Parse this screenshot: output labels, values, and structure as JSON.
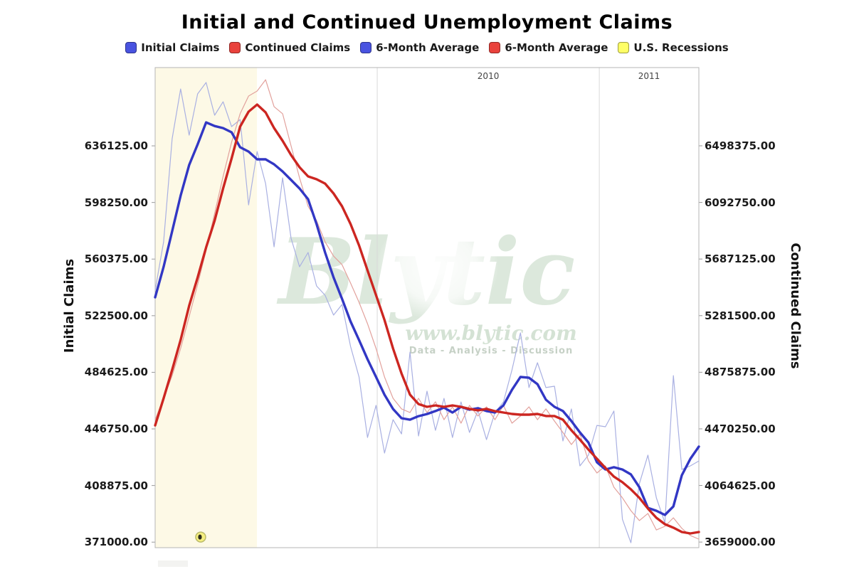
{
  "title": "Initial and Continued Unemployment Claims",
  "legend": {
    "items": [
      {
        "label": "Initial Claims",
        "color": "#4953e0"
      },
      {
        "label": "Continued Claims",
        "color": "#e9423c"
      },
      {
        "label": "6-Month Average",
        "color": "#4953e0"
      },
      {
        "label": "6-Month Average",
        "color": "#e9423c"
      },
      {
        "label": "U.S. Recessions",
        "color": "#ffff66"
      }
    ]
  },
  "watermark": {
    "brand": "Blytic",
    "url": "www.blytic.com",
    "tagline": "Data - Analysis - Discussion"
  },
  "chart_data": {
    "type": "line",
    "title": "Initial and Continued Unemployment Claims",
    "x": {
      "unit": "months_since_2009_01",
      "range": [
        0,
        29.38
      ],
      "gridline_months": [
        12,
        24
      ],
      "year_labels": [
        {
          "label": "2010",
          "from": 12,
          "to": 24
        },
        {
          "label": "2011",
          "from": 24,
          "to": 29.38
        }
      ]
    },
    "axes": {
      "left": {
        "label": "Initial Claims",
        "ticks": [
          636125,
          598250,
          560375,
          522500,
          484625,
          446750,
          408875,
          371000
        ],
        "range": [
          367300,
          688500
        ],
        "tick_decimals": 2
      },
      "right": {
        "label": "Continued Claims",
        "ticks": [
          6498375,
          6092750,
          5687125,
          5281500,
          4875875,
          4470250,
          4064625,
          3659000
        ],
        "range": [
          3618900,
          7059000
        ],
        "tick_decimals": 2
      }
    },
    "recession_bands": [
      {
        "from": 0,
        "to": 5.5
      }
    ],
    "recession_marker": {
      "month": 2.46,
      "value": 374400
    },
    "colors": {
      "recession_fill": "#fdf9e6",
      "grid": "#d9d9d9",
      "border": "#b5b5b5",
      "tick": "#999999",
      "year_label": "#444444"
    },
    "series": [
      {
        "name": "Initial Claims",
        "axis": "left",
        "style": "thin",
        "color": "#a9b0e2",
        "width": 1.2,
        "values": [
          539500,
          571900,
          640900,
          674200,
          643300,
          670900,
          678500,
          656600,
          665600,
          649000,
          653700,
          596600,
          632300,
          610900,
          568600,
          614700,
          574300,
          555200,
          564800,
          542400,
          536200,
          522900,
          530000,
          501900,
          481500,
          441000,
          462500,
          430600,
          452900,
          443400,
          498100,
          442000,
          472000,
          445800,
          467200,
          441000,
          464800,
          444400,
          459100,
          439600,
          457700,
          464800,
          486200,
          511000,
          474400,
          491000,
          474400,
          475300,
          438700,
          460100,
          422000,
          429200,
          449100,
          448200,
          458700,
          386300,
          370600,
          410100,
          429200,
          400600,
          384000,
          482400,
          419600,
          422000,
          425300
        ]
      },
      {
        "name": "Continued Claims",
        "axis": "right",
        "style": "thin",
        "color": "#e2a19c",
        "width": 1.2,
        "values": [
          4536000,
          4689000,
          4852000,
          5046000,
          5275000,
          5504000,
          5749000,
          6014000,
          6279000,
          6524000,
          6728000,
          6855000,
          6891000,
          6972000,
          6779000,
          6728000,
          6498000,
          6269000,
          6065000,
          5963000,
          5810000,
          5708000,
          5647000,
          5515000,
          5377000,
          5224000,
          5046000,
          4842000,
          4689000,
          4613000,
          4587000,
          4689000,
          4587000,
          4664000,
          4536000,
          4628000,
          4511000,
          4638000,
          4562000,
          4628000,
          4536000,
          4638000,
          4511000,
          4562000,
          4628000,
          4536000,
          4613000,
          4526000,
          4444000,
          4358000,
          4434000,
          4241000,
          4154000,
          4205000,
          4052000,
          3976000,
          3884000,
          3813000,
          3864000,
          3746000,
          3772000,
          3833000,
          3757000,
          3706000,
          3680000
        ]
      },
      {
        "name": "Initial Claims 6-Month Average",
        "axis": "left",
        "style": "thick",
        "color": "#3237c4",
        "width": 3.4,
        "values": [
          534800,
          555200,
          579000,
          602800,
          623300,
          637100,
          651800,
          649400,
          648000,
          645200,
          635200,
          632300,
          627100,
          627100,
          623800,
          619000,
          613300,
          607600,
          600400,
          583800,
          564800,
          548100,
          533800,
          518600,
          506200,
          493400,
          481500,
          469600,
          460100,
          453900,
          452900,
          455300,
          456700,
          458700,
          461000,
          457700,
          461500,
          459600,
          460600,
          458700,
          457700,
          462500,
          472900,
          481500,
          481000,
          476700,
          466300,
          461500,
          458700,
          452000,
          444400,
          437700,
          424400,
          419600,
          421100,
          419600,
          416300,
          407700,
          393900,
          392000,
          389200,
          394900,
          415800,
          426800,
          434900
        ]
      },
      {
        "name": "Continued Claims 6-Month Average",
        "axis": "right",
        "style": "thick",
        "color": "#cc2621",
        "width": 3.4,
        "values": [
          4495000,
          4689000,
          4893000,
          5107000,
          5352000,
          5555000,
          5770000,
          5963000,
          6193000,
          6407000,
          6636000,
          6743000,
          6794000,
          6738000,
          6626000,
          6534000,
          6432000,
          6345000,
          6279000,
          6259000,
          6228000,
          6157000,
          6065000,
          5938000,
          5785000,
          5606000,
          5428000,
          5250000,
          5046000,
          4867000,
          4715000,
          4648000,
          4628000,
          4638000,
          4628000,
          4638000,
          4628000,
          4613000,
          4603000,
          4613000,
          4597000,
          4587000,
          4577000,
          4572000,
          4572000,
          4577000,
          4562000,
          4562000,
          4536000,
          4460000,
          4393000,
          4322000,
          4256000,
          4190000,
          4128000,
          4088000,
          4037000,
          3976000,
          3899000,
          3833000,
          3787000,
          3762000,
          3731000,
          3721000,
          3731000
        ]
      }
    ]
  }
}
